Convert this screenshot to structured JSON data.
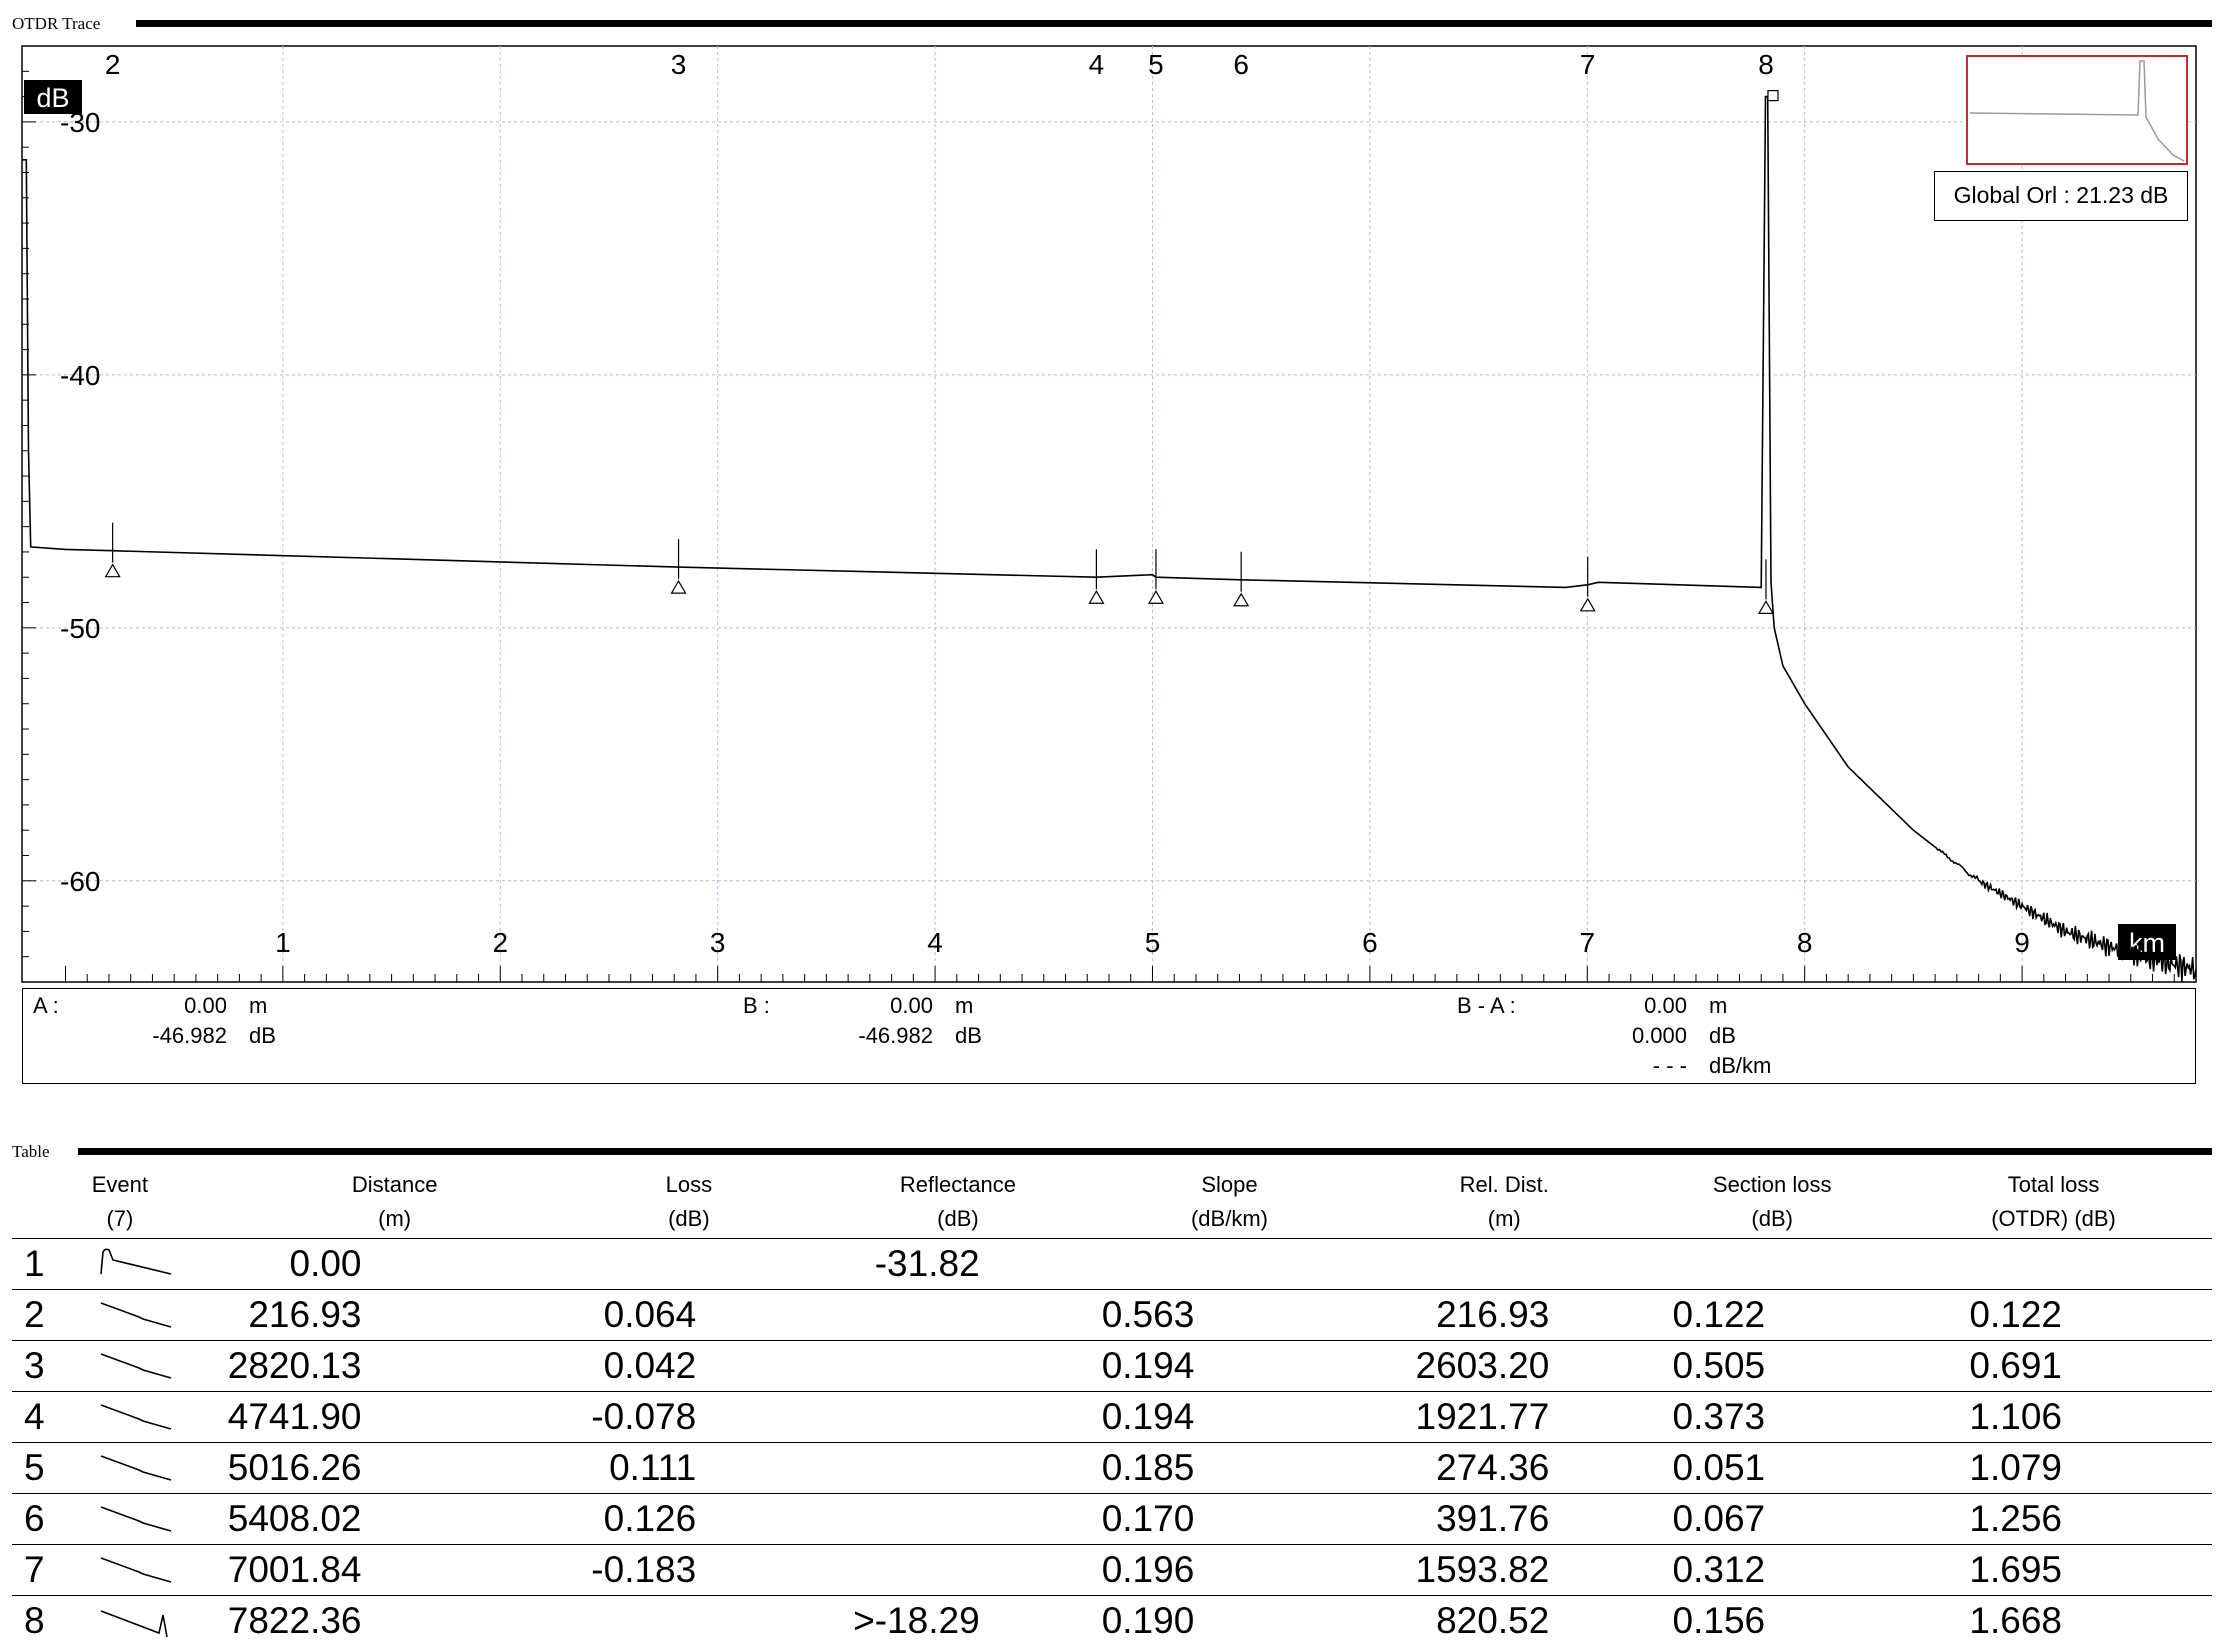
{
  "trace": {
    "section_title": "OTDR Trace",
    "y_unit": "dB",
    "x_unit": "km",
    "global_orl": "Global Orl : 21.23 dB"
  },
  "chart_data": {
    "type": "line",
    "title": "",
    "xlabel": "km",
    "ylabel": "dB",
    "xlim": [
      -0.2,
      9.8
    ],
    "ylim": [
      -64,
      -27
    ],
    "x_ticks": [
      "1",
      "2",
      "3",
      "4",
      "5",
      "6",
      "7",
      "8",
      "9"
    ],
    "y_ticks": [
      "-30",
      "-40",
      "-50",
      "-60"
    ],
    "grid": true,
    "event_markers": [
      {
        "label": "2",
        "km": 0.217
      },
      {
        "label": "3",
        "km": 2.82
      },
      {
        "label": "4",
        "km": 4.742
      },
      {
        "label": "5",
        "km": 5.016
      },
      {
        "label": "6",
        "km": 5.408
      },
      {
        "label": "7",
        "km": 7.002
      },
      {
        "label": "8",
        "km": 7.822
      }
    ],
    "series": [
      {
        "x": [
          -0.2,
          -0.18,
          -0.17,
          -0.16,
          0.0,
          0.217,
          2.82,
          4.742,
          5.0,
          5.016,
          5.408,
          6.9,
          7.0,
          7.002,
          7.05,
          7.8,
          7.82,
          7.83,
          7.845,
          7.86,
          7.9,
          8.0,
          8.2,
          8.5,
          8.8,
          9.0,
          9.2,
          9.4,
          9.6,
          9.8
        ],
        "y": [
          -31.5,
          -31.5,
          -43,
          -46.8,
          -46.9,
          -46.95,
          -47.6,
          -48.0,
          -47.9,
          -48.0,
          -48.1,
          -48.4,
          -48.3,
          -48.3,
          -48.2,
          -48.4,
          -29.0,
          -29.0,
          -48.2,
          -50.0,
          -51.5,
          -53.0,
          -55.5,
          -58.0,
          -60.0,
          -61.0,
          -62.0,
          -62.6,
          -63.1,
          -63.5
        ]
      }
    ]
  },
  "cursors": {
    "a_label": "A :",
    "a_dist": "0.00",
    "a_dist_unit": "m",
    "a_level": "-46.982",
    "a_level_unit": "dB",
    "b_label": "B :",
    "b_dist": "0.00",
    "b_dist_unit": "m",
    "b_level": "-46.982",
    "b_level_unit": "dB",
    "ba_label": "B - A :",
    "ba_dist": "0.00",
    "ba_dist_unit": "m",
    "ba_level": "0.000",
    "ba_level_unit": "dB",
    "ba_slope": "- - -",
    "ba_slope_unit": "dB/km"
  },
  "table": {
    "section_title": "Table",
    "headers": [
      {
        "name": "Event",
        "unit": "(7)"
      },
      {
        "name": "Distance",
        "unit": "(m)"
      },
      {
        "name": "Loss",
        "unit": "(dB)"
      },
      {
        "name": "Reflectance",
        "unit": "(dB)"
      },
      {
        "name": "Slope",
        "unit": "(dB/km)"
      },
      {
        "name": "Rel. Dist.",
        "unit": "(m)"
      },
      {
        "name": "Section loss",
        "unit": "(dB)"
      },
      {
        "name": "Total loss",
        "unit": "(OTDR) (dB)"
      }
    ],
    "rows": [
      {
        "num": "1",
        "icon": "launch-icon",
        "distance": "0.00",
        "loss": "",
        "reflectance": "-31.82",
        "slope": "",
        "rel_dist": "",
        "section_loss": "",
        "total_loss": ""
      },
      {
        "num": "2",
        "icon": "splice-icon",
        "distance": "216.93",
        "loss": "0.064",
        "reflectance": "",
        "slope": "0.563",
        "rel_dist": "216.93",
        "section_loss": "0.122",
        "total_loss": "0.122"
      },
      {
        "num": "3",
        "icon": "splice-icon",
        "distance": "2820.13",
        "loss": "0.042",
        "reflectance": "",
        "slope": "0.194",
        "rel_dist": "2603.20",
        "section_loss": "0.505",
        "total_loss": "0.691"
      },
      {
        "num": "4",
        "icon": "splice-icon",
        "distance": "4741.90",
        "loss": "-0.078",
        "reflectance": "",
        "slope": "0.194",
        "rel_dist": "1921.77",
        "section_loss": "0.373",
        "total_loss": "1.106"
      },
      {
        "num": "5",
        "icon": "splice-icon",
        "distance": "5016.26",
        "loss": "0.111",
        "reflectance": "",
        "slope": "0.185",
        "rel_dist": "274.36",
        "section_loss": "0.051",
        "total_loss": "1.079"
      },
      {
        "num": "6",
        "icon": "splice-icon",
        "distance": "5408.02",
        "loss": "0.126",
        "reflectance": "",
        "slope": "0.170",
        "rel_dist": "391.76",
        "section_loss": "0.067",
        "total_loss": "1.256"
      },
      {
        "num": "7",
        "icon": "splice-icon",
        "distance": "7001.84",
        "loss": "-0.183",
        "reflectance": "",
        "slope": "0.196",
        "rel_dist": "1593.82",
        "section_loss": "0.312",
        "total_loss": "1.695"
      },
      {
        "num": "8",
        "icon": "end-reflection-icon",
        "distance": "7822.36",
        "loss": "",
        "reflectance": ">-18.29",
        "slope": "0.190",
        "rel_dist": "820.52",
        "section_loss": "0.156",
        "total_loss": "1.668"
      }
    ]
  }
}
